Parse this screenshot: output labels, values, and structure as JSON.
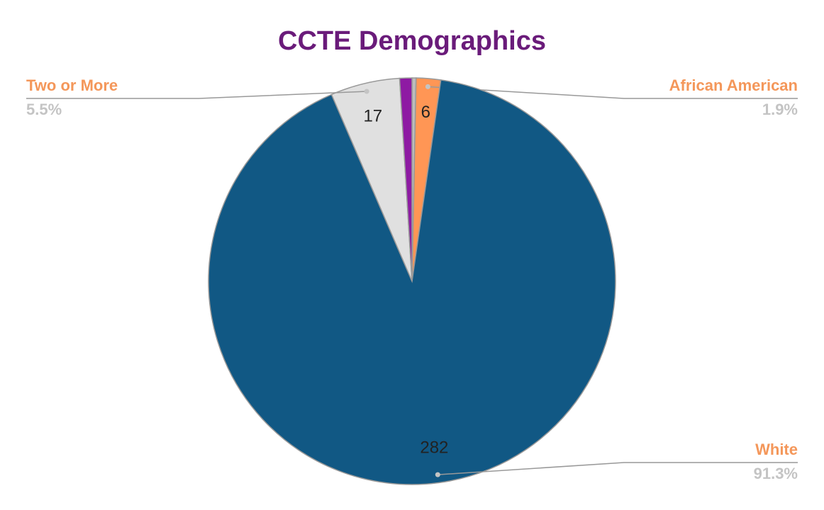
{
  "chart_data": {
    "type": "pie",
    "title": "CCTE Demographics",
    "categories": [
      null,
      "African American",
      "White",
      "Two or More",
      null
    ],
    "values": [
      1,
      6,
      282,
      17,
      3
    ],
    "percent_labels": [
      null,
      "1.9%",
      "91.3%",
      "5.5%",
      null
    ],
    "colors": [
      "#bdbdbd",
      "#ff9655",
      "#115884",
      "#e0e0e0",
      "#8e1aa3"
    ],
    "label_color": "#f4975a",
    "percent_color": "#c4c4c4",
    "title_color": "#6a1b7a"
  }
}
